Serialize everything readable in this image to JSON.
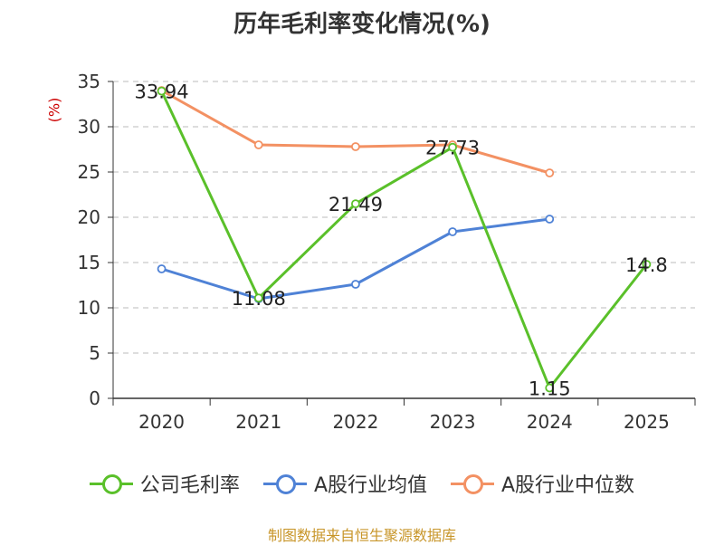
{
  "chart_data": {
    "type": "line",
    "title": "历年毛利率变化情况(%)",
    "ylabel": "(%)",
    "ylim": [
      0,
      35
    ],
    "yticks": [
      0,
      5,
      10,
      15,
      20,
      25,
      30,
      35
    ],
    "categories": [
      "2020",
      "2021",
      "2022",
      "2023",
      "2024",
      "2025"
    ],
    "grid": true,
    "legend_position": "bottom",
    "series": [
      {
        "name": "公司毛利率",
        "color": "#5ac02a",
        "values": [
          33.94,
          11.08,
          21.49,
          27.73,
          1.15,
          14.8
        ],
        "labels": [
          "33.94",
          "11.08",
          "21.49",
          "27.73",
          "1.15",
          "14.8"
        ]
      },
      {
        "name": "A股行业均值",
        "color": "#4f82d6",
        "values": [
          14.3,
          11.0,
          12.6,
          18.4,
          19.8,
          null
        ]
      },
      {
        "name": "A股行业中位数",
        "color": "#f39163",
        "values": [
          34.0,
          28.0,
          27.8,
          28.0,
          24.9,
          null
        ]
      }
    ]
  },
  "source": "制图数据来自恒生聚源数据库"
}
